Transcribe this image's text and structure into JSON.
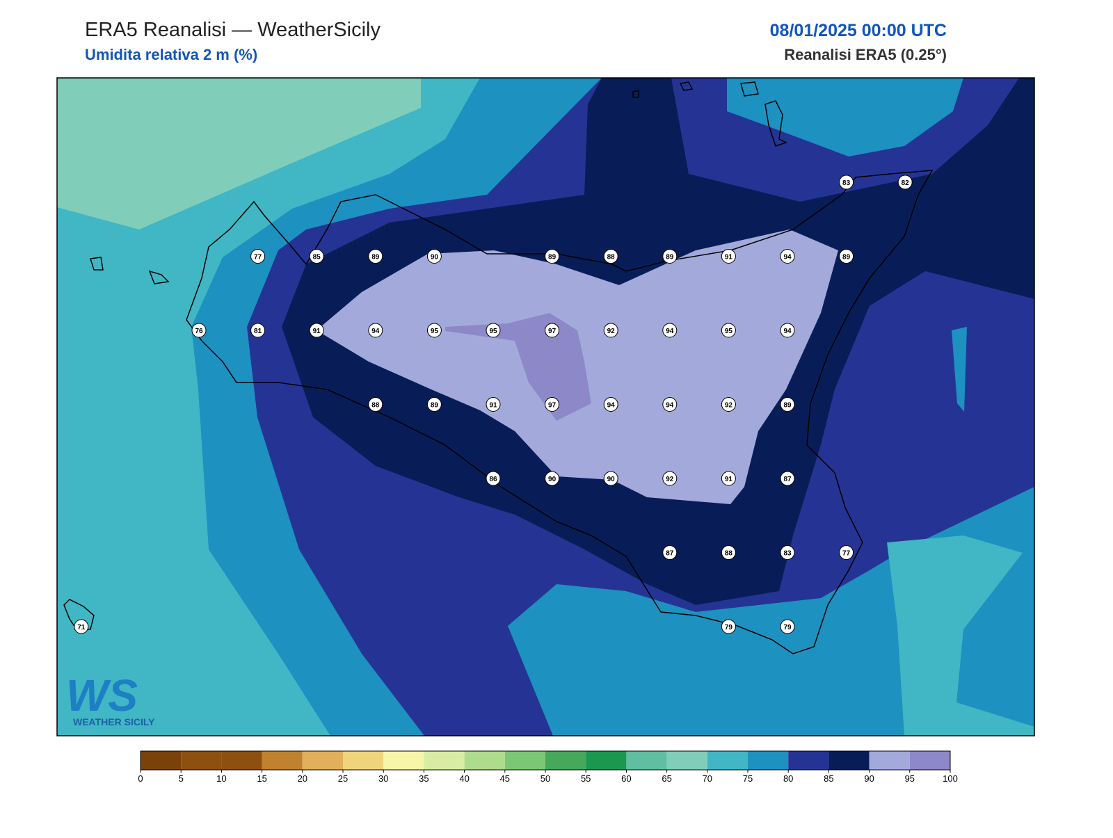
{
  "header": {
    "title": "ERA5 Reanalisi — WeatherSicily",
    "subtitle": "Umidita relativa 2 m (%)",
    "datetime": "08/01/2025 00:00 UTC",
    "source": "Reanalisi ERA5 (0.25°)"
  },
  "stations": [
    83,
    82,
    77,
    85,
    89,
    90,
    89,
    88,
    89,
    91,
    94,
    89,
    76,
    81,
    91,
    94,
    95,
    95,
    97,
    92,
    94,
    95,
    94,
    88,
    89,
    91,
    97,
    94,
    94,
    92,
    89,
    86,
    90,
    90,
    92,
    91,
    87,
    87,
    88,
    83,
    77,
    71,
    79,
    79
  ],
  "colorbar": {
    "ticks": [
      0,
      5,
      10,
      15,
      20,
      25,
      30,
      35,
      40,
      45,
      50,
      55,
      60,
      65,
      70,
      75,
      80,
      85,
      90,
      95,
      100
    ],
    "colors": [
      "#7a4209",
      "#8e500f",
      "#8e500f",
      "#c0822f",
      "#e0b05b",
      "#f0d47c",
      "#f7f5a8",
      "#d8eda3",
      "#aedc8c",
      "#7bc776",
      "#45a85a",
      "#1a9850",
      "#5fbfa0",
      "#80ceb9",
      "#41b6c4",
      "#1d91c0",
      "#253494",
      "#081d58",
      "#a3aadb",
      "#8d88c8"
    ]
  },
  "logo": {
    "mark": "WS",
    "text": "WEATHER SICILY"
  }
}
